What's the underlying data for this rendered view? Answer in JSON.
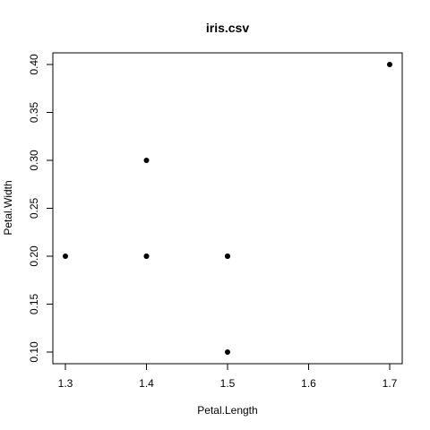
{
  "chart_data": {
    "type": "scatter",
    "title": "iris.csv",
    "xlabel": "Petal.Length",
    "ylabel": "Petal.Width",
    "xlim": [
      1.3,
      1.7
    ],
    "ylim": [
      0.1,
      0.4
    ],
    "x_ticks": [
      "1.3",
      "1.4",
      "1.5",
      "1.6",
      "1.7"
    ],
    "y_ticks": [
      "0.10",
      "0.15",
      "0.20",
      "0.25",
      "0.30",
      "0.35",
      "0.40"
    ],
    "grid": false,
    "legend": "none",
    "point_color": "#000000",
    "points": [
      {
        "x": 1.3,
        "y": 0.2
      },
      {
        "x": 1.4,
        "y": 0.2
      },
      {
        "x": 1.4,
        "y": 0.2
      },
      {
        "x": 1.4,
        "y": 0.3
      },
      {
        "x": 1.5,
        "y": 0.2
      },
      {
        "x": 1.5,
        "y": 0.2
      },
      {
        "x": 1.5,
        "y": 0.1
      },
      {
        "x": 1.7,
        "y": 0.4
      }
    ]
  }
}
